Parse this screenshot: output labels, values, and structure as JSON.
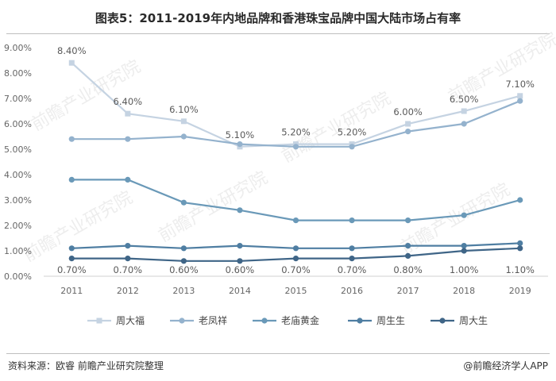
{
  "title": "图表5：2011-2019年内地品牌和香港珠宝品牌中国大陆市场占有率",
  "source": "资料来源：欧睿 前瞻产业研究院整理",
  "credit": "@前瞻经济学人APP",
  "watermark": "前瞻产业研究院",
  "chart_data": {
    "type": "line",
    "x": [
      "2011",
      "2012",
      "2013",
      "2014",
      "2015",
      "2016",
      "2017",
      "2018",
      "2019"
    ],
    "ylim": [
      0,
      9
    ],
    "yticks": [
      "0.00%",
      "1.00%",
      "2.00%",
      "3.00%",
      "4.00%",
      "5.00%",
      "6.00%",
      "7.00%",
      "8.00%",
      "9.00%"
    ],
    "grid": false,
    "legend": "bottom",
    "series": [
      {
        "name": "周大福",
        "color": "#c5d3e2",
        "values": [
          8.4,
          6.4,
          6.1,
          5.1,
          5.2,
          5.2,
          6.0,
          6.5,
          7.1
        ],
        "labels": [
          "8.40%",
          "6.40%",
          "6.10%",
          "5.10%",
          "5.20%",
          "5.20%",
          "6.00%",
          "6.50%",
          "7.10%"
        ]
      },
      {
        "name": "老凤祥",
        "color": "#94b2cd",
        "values": [
          5.4,
          5.4,
          5.5,
          5.2,
          5.1,
          5.1,
          5.7,
          6.0,
          6.9
        ]
      },
      {
        "name": "老庙黄金",
        "color": "#6a99b8",
        "values": [
          3.8,
          3.8,
          2.9,
          2.6,
          2.2,
          2.2,
          2.2,
          2.4,
          3.0
        ]
      },
      {
        "name": "周生生",
        "color": "#4f7ea2",
        "values": [
          1.1,
          1.2,
          1.1,
          1.2,
          1.1,
          1.1,
          1.2,
          1.2,
          1.3
        ]
      },
      {
        "name": "周大生",
        "color": "#3f6587",
        "values": [
          0.7,
          0.7,
          0.6,
          0.6,
          0.7,
          0.7,
          0.8,
          1.0,
          1.1
        ],
        "labels": [
          "0.70%",
          "0.70%",
          "0.60%",
          "0.60%",
          "0.70%",
          "0.70%",
          "0.80%",
          "1.00%",
          "1.10%"
        ]
      }
    ]
  }
}
